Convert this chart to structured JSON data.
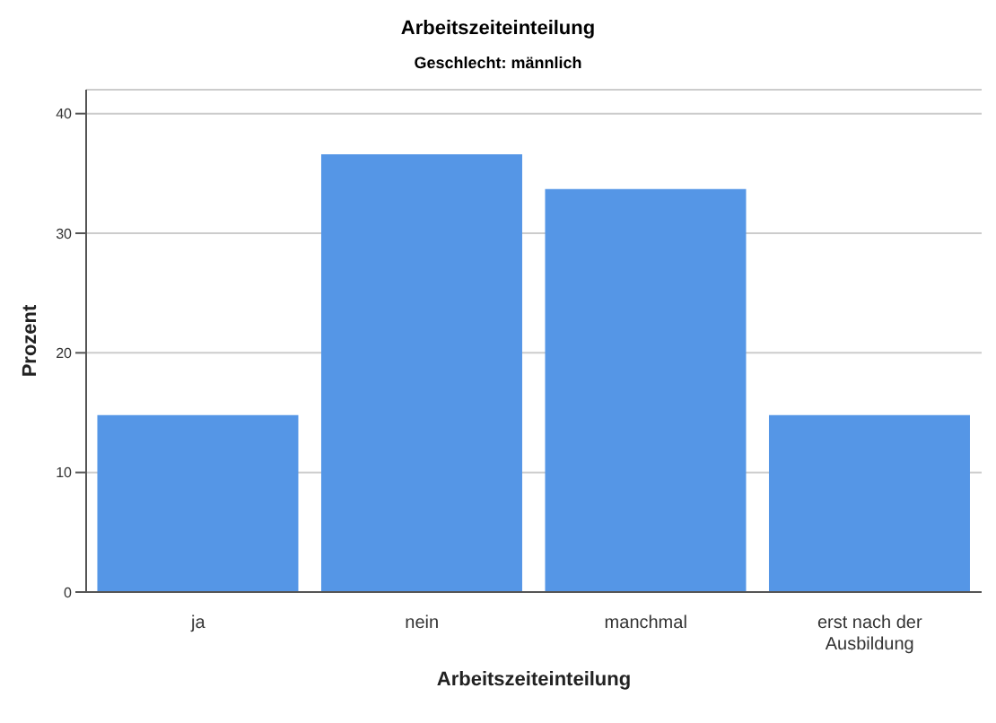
{
  "chart_data": {
    "type": "bar",
    "title": "Arbeitszeiteinteilung",
    "subtitle": "Geschlecht: männlich",
    "xlabel": "Arbeitszeiteinteilung",
    "ylabel": "Prozent",
    "categories": [
      "ja",
      "nein",
      "manchmal",
      "erst nach der Ausbildung"
    ],
    "values": [
      14.8,
      36.6,
      33.7,
      14.8
    ],
    "color": "#5596e6",
    "ylim": [
      0,
      42
    ],
    "yticks": [
      0,
      10,
      20,
      30,
      40
    ],
    "grid": "y"
  }
}
